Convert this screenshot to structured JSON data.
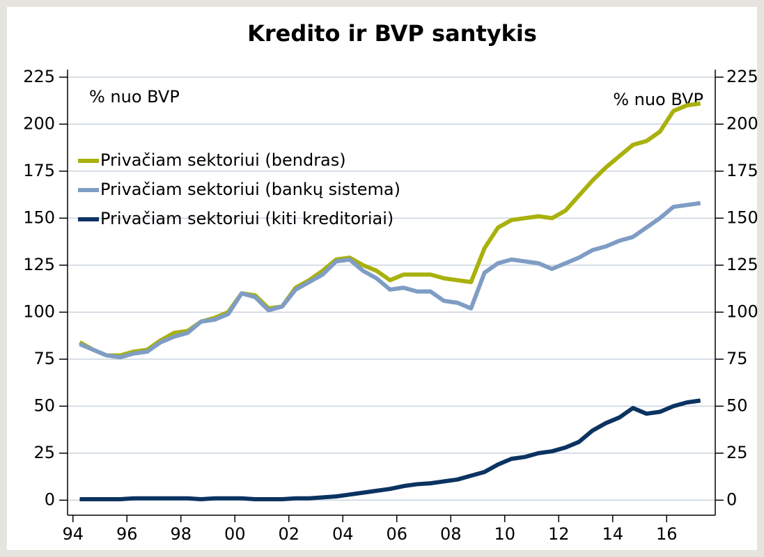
{
  "chart_data": {
    "type": "line",
    "title": "Kredito ir BVP santykis",
    "annotations": [
      "% nuo BVP",
      "% nuo BVP"
    ],
    "legend": "upper left",
    "grid": true,
    "x": [
      1994.25,
      1994.75,
      1995.25,
      1995.75,
      1996.25,
      1996.75,
      1997.25,
      1997.75,
      1998.25,
      1998.75,
      1999.25,
      1999.75,
      2000.25,
      2000.75,
      2001.25,
      2001.75,
      2002.25,
      2002.75,
      2003.25,
      2003.75,
      2004.25,
      2004.75,
      2005.25,
      2005.75,
      2006.25,
      2006.75,
      2007.25,
      2007.75,
      2008.25,
      2008.75,
      2009.25,
      2009.75,
      2010.25,
      2010.75,
      2011.25,
      2011.75,
      2012.25,
      2012.75,
      2013.25,
      2013.75,
      2014.25,
      2014.75,
      2015.25,
      2015.75,
      2016.25,
      2016.75,
      2017.25
    ],
    "series": [
      {
        "name": "Privačiam sektoriui (bendras)",
        "color": "#a9b10c",
        "values": [
          84,
          80,
          77,
          77,
          79,
          80,
          85,
          89,
          90,
          95,
          97,
          100,
          110,
          109,
          102,
          103,
          113,
          117,
          122,
          128,
          129,
          125,
          122,
          117,
          120,
          120,
          120,
          118,
          117,
          116,
          134,
          145,
          149,
          150,
          151,
          150,
          154,
          162,
          170,
          177,
          183,
          189,
          191,
          196,
          207,
          210,
          211
        ]
      },
      {
        "name": "Privačiam sektoriui (bankų sistema)",
        "color": "#7f9dc4",
        "values": [
          83,
          80,
          77,
          76,
          78,
          79,
          84,
          87,
          89,
          95,
          96,
          99,
          110,
          108,
          101,
          103,
          112,
          116,
          120,
          127,
          128,
          122,
          118,
          112,
          113,
          111,
          111,
          106,
          105,
          102,
          121,
          126,
          128,
          127,
          126,
          123,
          126,
          129,
          133,
          135,
          138,
          140,
          145,
          150,
          156,
          157,
          158
        ]
      },
      {
        "name": "Privačiam sektoriui (kiti kreditoriai)",
        "color": "#0b3361",
        "values": [
          0.5,
          0.5,
          0.5,
          0.5,
          1,
          1,
          1,
          1,
          1,
          0.5,
          1,
          1,
          1,
          0.5,
          0.5,
          0.5,
          1,
          1,
          1.5,
          2,
          3,
          4,
          5,
          6,
          7.5,
          8.5,
          9,
          10,
          11,
          13,
          15,
          19,
          22,
          23,
          25,
          26,
          28,
          31,
          37,
          41,
          44,
          49,
          46,
          47,
          50,
          52,
          53
        ]
      }
    ],
    "xlim": [
      1993.8,
      2017.8
    ],
    "xticks": [
      {
        "value": 1994,
        "label": "94"
      },
      {
        "value": 1996,
        "label": "96"
      },
      {
        "value": 1998,
        "label": "98"
      },
      {
        "value": 2000,
        "label": "00"
      },
      {
        "value": 2002,
        "label": "02"
      },
      {
        "value": 2004,
        "label": "04"
      },
      {
        "value": 2006,
        "label": "06"
      },
      {
        "value": 2008,
        "label": "08"
      },
      {
        "value": 2010,
        "label": "10"
      },
      {
        "value": 2012,
        "label": "12"
      },
      {
        "value": 2014,
        "label": "14"
      },
      {
        "value": 2016,
        "label": "16"
      }
    ],
    "ylim": [
      -8,
      229
    ],
    "yticks": [
      0,
      25,
      50,
      75,
      100,
      125,
      150,
      175,
      200,
      225
    ],
    "y2lim": [
      -8,
      229
    ],
    "y2ticks": [
      0,
      25,
      50,
      75,
      100,
      125,
      150,
      175,
      200,
      225
    ]
  }
}
